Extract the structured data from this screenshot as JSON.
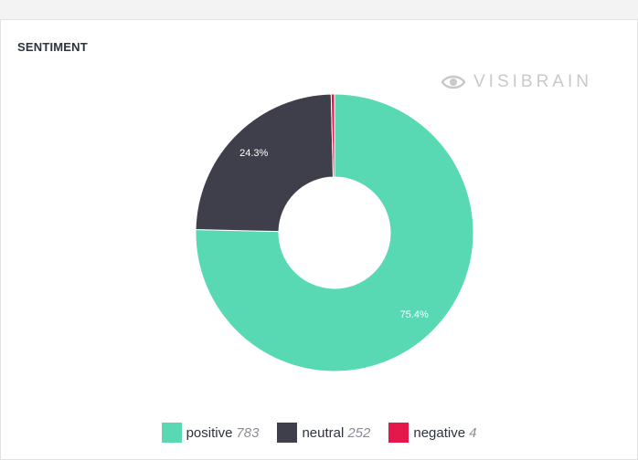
{
  "header": {
    "title": "SENTIMENT",
    "brand": "VISIBRAIN",
    "brand_icon": "eye-icon"
  },
  "chart_data": {
    "type": "pie",
    "title": "SENTIMENT",
    "donut": true,
    "categories": [
      "positive",
      "neutral",
      "negative"
    ],
    "values": [
      783,
      252,
      4
    ],
    "colors": [
      "#58d9b3",
      "#3f3f4b",
      "#e4184a"
    ],
    "data_labels": [
      "75.4%",
      "24.3%",
      ""
    ],
    "legend_position": "bottom"
  },
  "legend": [
    {
      "name": "positive",
      "count": "783",
      "color": "#58d9b3"
    },
    {
      "name": "neutral",
      "count": "252",
      "color": "#3f3f4b"
    },
    {
      "name": "negative",
      "count": "4",
      "color": "#e4184a"
    }
  ]
}
